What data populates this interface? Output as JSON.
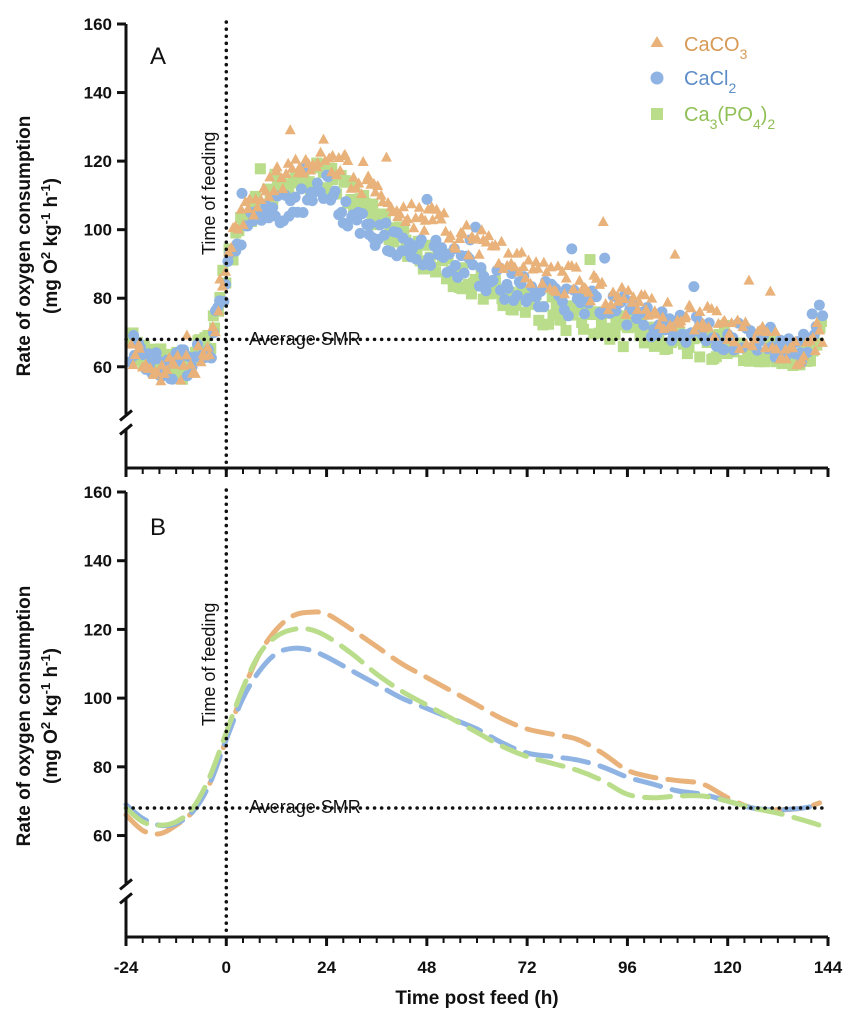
{
  "chart_data": [
    {
      "type": "scatter",
      "panel_label": "A",
      "ylabel_line1": "Rate of oxygen consumption",
      "ylabel_line2": "(mg O2 kg-1 h-1)",
      "xlim": [
        -24,
        144
      ],
      "ylim": [
        50,
        160
      ],
      "yticks": [
        60,
        80,
        100,
        120,
        140,
        160
      ],
      "xticks": [
        -24,
        0,
        24,
        48,
        72,
        96,
        120,
        144
      ],
      "axis_break": true,
      "grid": false,
      "annotations": {
        "feeding": "Time of feeding",
        "smr": "Average SMR",
        "smr_value": 68,
        "feeding_time": 0
      },
      "legend_position": "top-right",
      "series": [
        {
          "name": "CaCO3",
          "color": "#e8b27a",
          "marker": "triangle"
        },
        {
          "name": "CaCl2",
          "color": "#8fb4e3",
          "marker": "circle"
        },
        {
          "name": "Ca3(PO4)2",
          "color": "#b9dd8a",
          "marker": "square"
        }
      ],
      "smooth_means": {
        "x": [
          -24,
          -20,
          -16,
          -12,
          -8,
          -4,
          0,
          4,
          8,
          12,
          16,
          20,
          24,
          28,
          32,
          36,
          40,
          44,
          48,
          54,
          60,
          66,
          72,
          78,
          84,
          90,
          96,
          102,
          108,
          114,
          120,
          126,
          132,
          138,
          142
        ],
        "CaCO3": [
          64,
          62,
          60,
          59,
          61,
          66,
          90,
          104,
          110,
          114,
          118,
          121,
          122,
          118,
          114,
          110,
          108,
          105,
          103,
          99,
          96,
          92,
          88,
          86,
          85,
          82,
          78,
          76,
          75,
          74,
          70,
          68,
          66,
          64,
          70
        ],
        "CaCl2": [
          66,
          64,
          61,
          60,
          62,
          64,
          88,
          100,
          104,
          106,
          108,
          110,
          112,
          106,
          102,
          99,
          97,
          95,
          94,
          91,
          88,
          84,
          82,
          80,
          79,
          78,
          76,
          73,
          71,
          70,
          69,
          68,
          67,
          64,
          78
        ],
        "Ca3(PO4)2": [
          67,
          63,
          61,
          60,
          62,
          67,
          90,
          104,
          108,
          112,
          114,
          115,
          116,
          112,
          108,
          104,
          100,
          96,
          92,
          88,
          84,
          80,
          78,
          76,
          74,
          72,
          70,
          70,
          68,
          67,
          66,
          66,
          65,
          63,
          70
        ]
      }
    },
    {
      "type": "line",
      "panel_label": "B",
      "xlabel": "Time post feed (h)",
      "ylabel_line1": "Rate of oxygen consumption",
      "ylabel_line2": "(mg O2 kg-1 h-1)",
      "xlim": [
        -24,
        144
      ],
      "ylim": [
        50,
        160
      ],
      "yticks": [
        60,
        80,
        100,
        120,
        140,
        160
      ],
      "xticks": [
        -24,
        0,
        24,
        48,
        72,
        96,
        120,
        144
      ],
      "axis_break": true,
      "grid": false,
      "annotations": {
        "feeding": "Time of feeding",
        "smr": "Average SMR",
        "smr_value": 68,
        "feeding_time": 0
      },
      "x": [
        -24,
        -20,
        -16,
        -12,
        -8,
        -4,
        0,
        4,
        8,
        12,
        16,
        20,
        24,
        30,
        36,
        42,
        48,
        54,
        60,
        66,
        72,
        78,
        84,
        90,
        96,
        102,
        108,
        114,
        120,
        126,
        132,
        138,
        142
      ],
      "series": [
        {
          "name": "CaCO3",
          "color": "#e8b27a",
          "values": [
            66,
            61.5,
            60.5,
            63,
            67,
            75,
            88,
            102,
            113,
            120,
            124,
            125,
            124.5,
            120,
            115,
            110,
            106,
            102,
            98,
            94,
            91,
            89.5,
            88,
            84,
            79,
            77,
            76,
            75,
            71,
            68,
            67.5,
            68,
            69.5
          ]
        },
        {
          "name": "CaCl2",
          "color": "#8fb4e3",
          "values": [
            69,
            65,
            63,
            63.5,
            67,
            75,
            88,
            100,
            108,
            113,
            114.5,
            114,
            112,
            108,
            104,
            100,
            97,
            94,
            91,
            87,
            84,
            83,
            82,
            80,
            77,
            75,
            73,
            72,
            70,
            68,
            67.5,
            68,
            69
          ]
        },
        {
          "name": "Ca3(PO4)2",
          "color": "#b9dd8a",
          "values": [
            68,
            64,
            63,
            64,
            68,
            77,
            90,
            103,
            113,
            118,
            120,
            120,
            118,
            113,
            107,
            102,
            98,
            94,
            90,
            86,
            83,
            81,
            79,
            76,
            72,
            71,
            71.5,
            71.5,
            70,
            68,
            66.5,
            64.5,
            63
          ]
        }
      ]
    }
  ]
}
